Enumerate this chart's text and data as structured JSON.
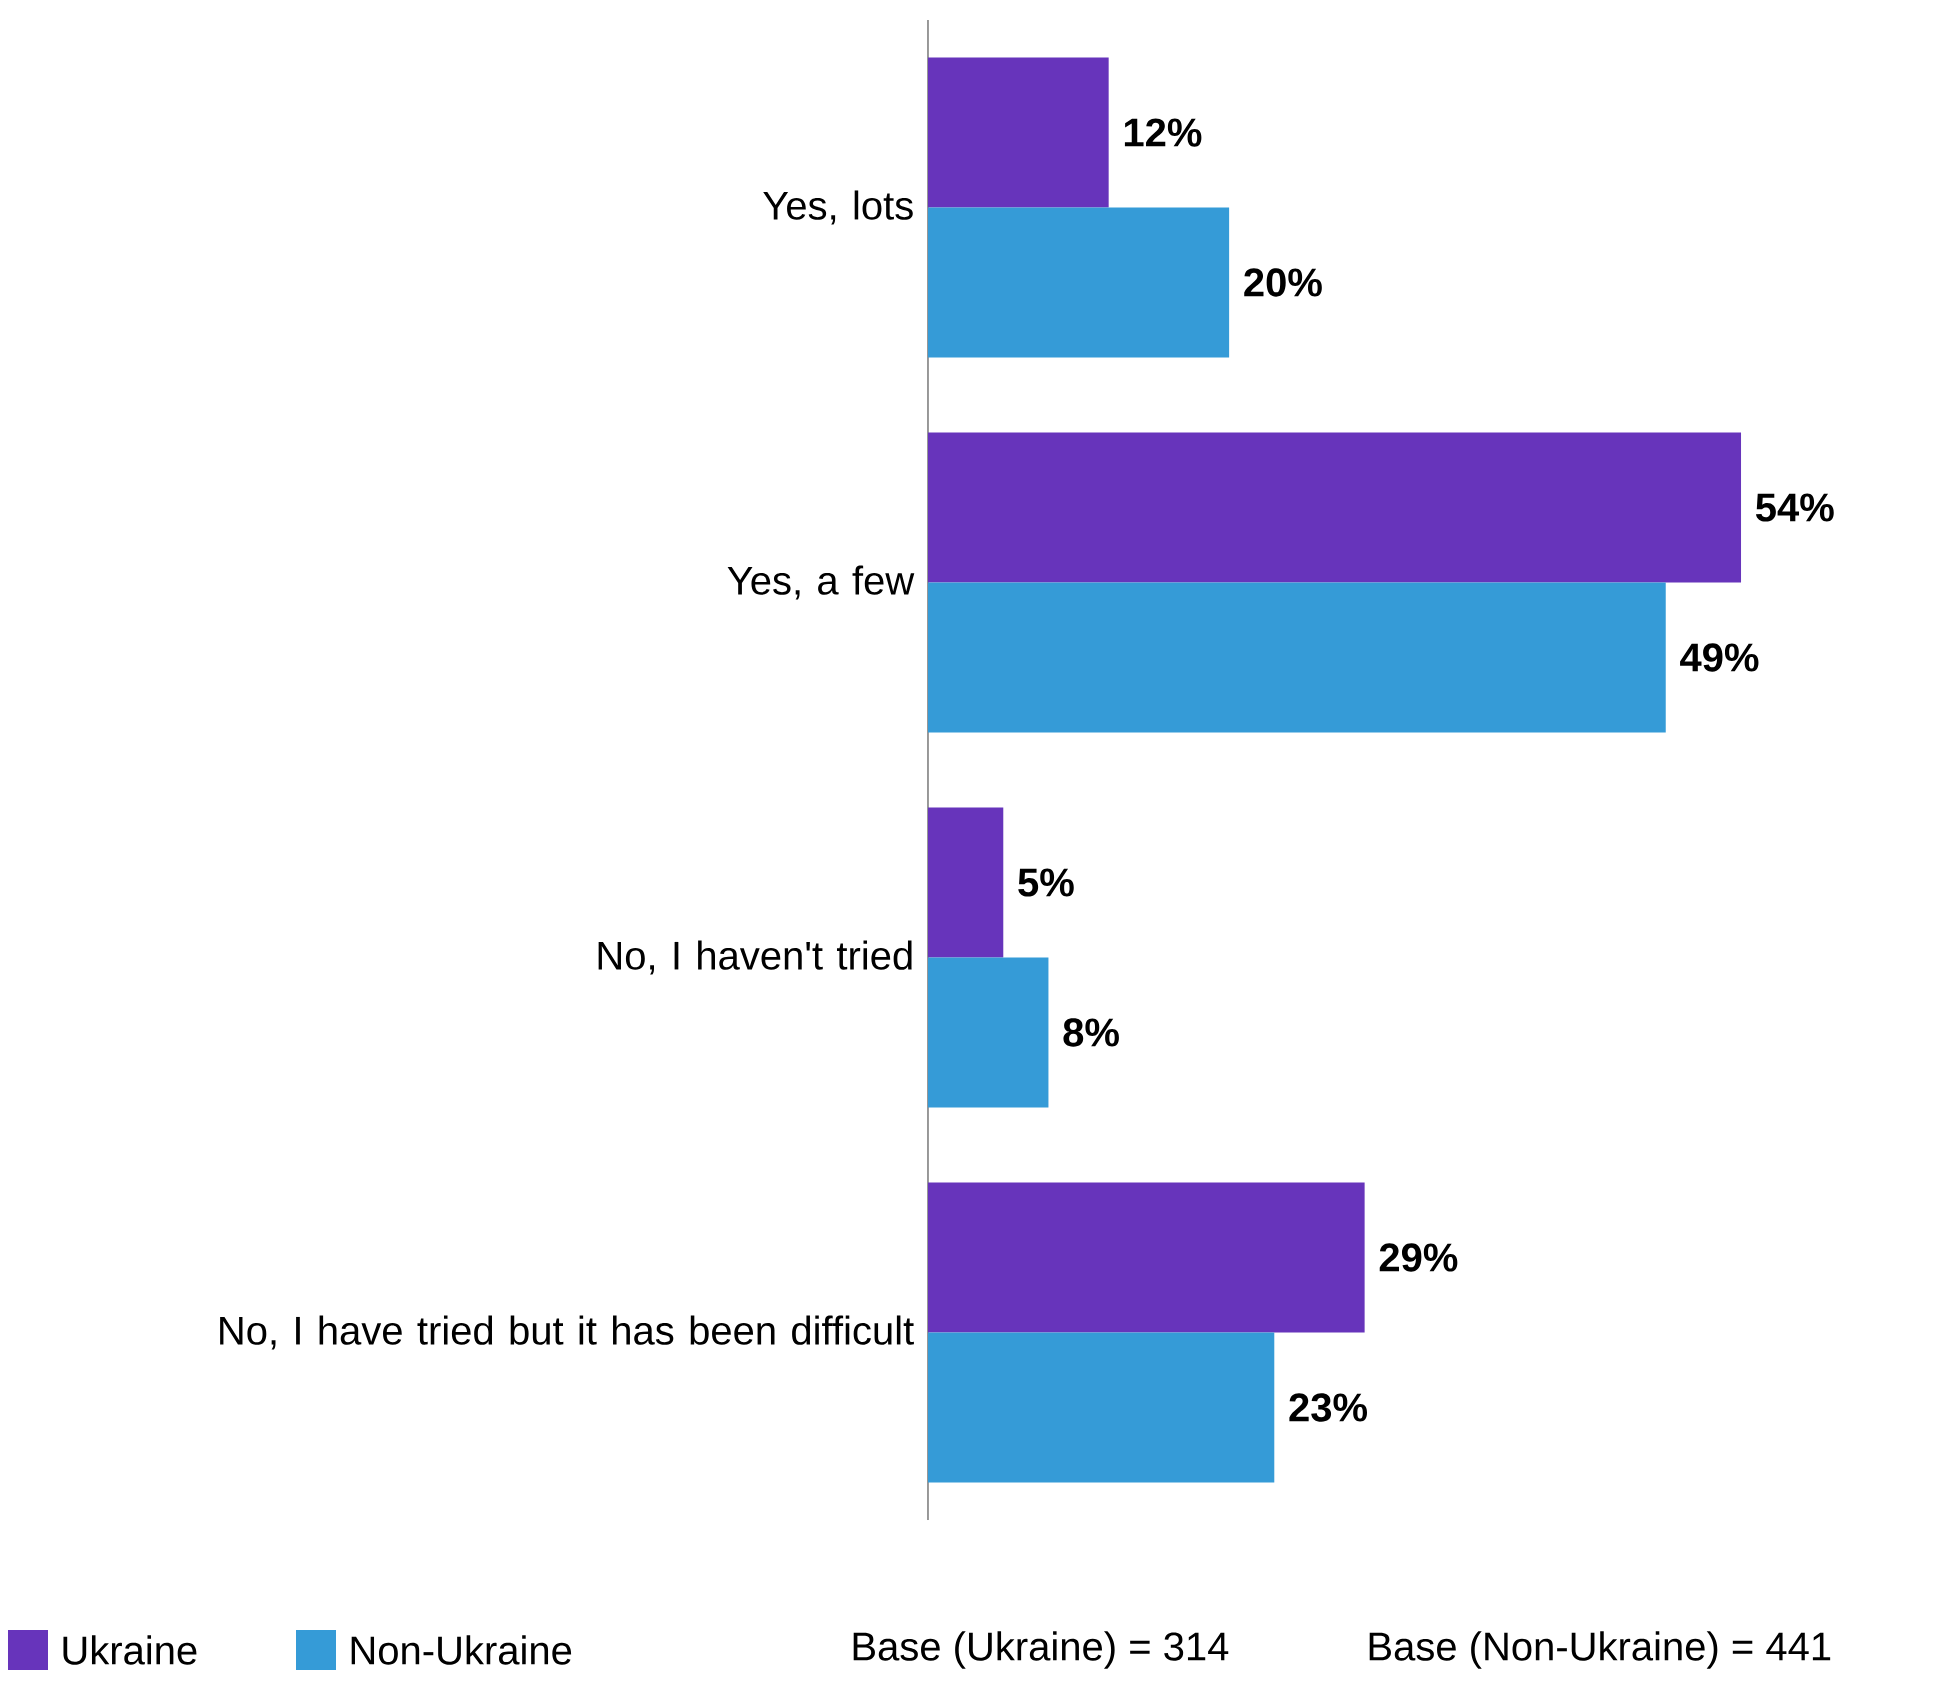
{
  "chart_data": {
    "type": "bar",
    "orientation": "horizontal",
    "categories": [
      "Yes, lots",
      "Yes, a few",
      "No, I haven't tried",
      "No, I have tried but it has been difficult"
    ],
    "series": [
      {
        "name": "Ukraine",
        "color": "#6734bb",
        "values": [
          12,
          54,
          5,
          29
        ],
        "value_labels": [
          "12%",
          "54%",
          "5%",
          "29%"
        ]
      },
      {
        "name": "Non-Ukraine",
        "color": "#359bd7",
        "values": [
          20,
          49,
          8,
          23
        ],
        "value_labels": [
          "20%",
          "49%",
          "8%",
          "23%"
        ]
      }
    ],
    "legend": "bottom left",
    "annotations": [
      "Base (Ukraine) = 314",
      "Base (Non-Ukraine) = 441"
    ]
  }
}
